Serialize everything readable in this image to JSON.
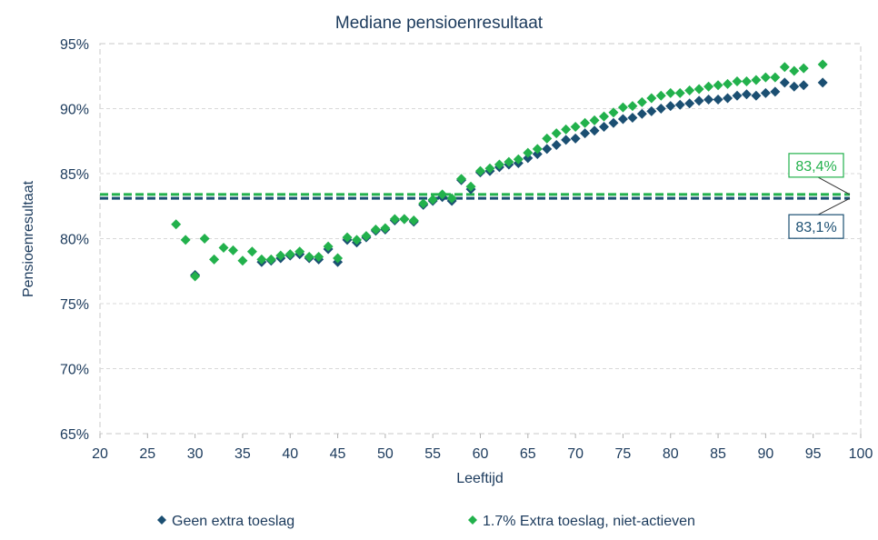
{
  "chart_data": {
    "type": "scatter",
    "title": "Mediane pensioenresultaat",
    "xlabel": "Leeftijd",
    "ylabel": "Pensioenresultaat",
    "xlim": [
      20,
      100
    ],
    "ylim": [
      65,
      95
    ],
    "x_ticks": [
      "20",
      "25",
      "30",
      "35",
      "40",
      "45",
      "50",
      "55",
      "60",
      "65",
      "70",
      "75",
      "80",
      "85",
      "90",
      "95",
      "100"
    ],
    "y_ticks": [
      "65%",
      "70%",
      "75%",
      "80%",
      "85%",
      "90%",
      "95%"
    ],
    "grid": "horizontal dashed",
    "legend_position": "bottom",
    "series": [
      {
        "name": "Geen extra toeslag",
        "color": "#1b4f72",
        "marker": "diamond",
        "points": [
          [
            30,
            77.2
          ],
          [
            37,
            78.2
          ],
          [
            38,
            78.3
          ],
          [
            39,
            78.5
          ],
          [
            40,
            78.7
          ],
          [
            41,
            78.8
          ],
          [
            42,
            78.5
          ],
          [
            43,
            78.4
          ],
          [
            44,
            79.2
          ],
          [
            45,
            78.2
          ],
          [
            46,
            79.9
          ],
          [
            47,
            79.7
          ],
          [
            48,
            80.1
          ],
          [
            49,
            80.6
          ],
          [
            50,
            80.7
          ],
          [
            51,
            81.4
          ],
          [
            52,
            81.5
          ],
          [
            53,
            81.3
          ],
          [
            54,
            82.6
          ],
          [
            55,
            82.9
          ],
          [
            56,
            83.2
          ],
          [
            57,
            82.9
          ],
          [
            58,
            84.5
          ],
          [
            59,
            83.8
          ],
          [
            60,
            85.1
          ],
          [
            61,
            85.2
          ],
          [
            62,
            85.5
          ],
          [
            63,
            85.7
          ],
          [
            64,
            85.8
          ],
          [
            65,
            86.2
          ],
          [
            66,
            86.5
          ],
          [
            67,
            86.9
          ],
          [
            68,
            87.2
          ],
          [
            69,
            87.6
          ],
          [
            70,
            87.7
          ],
          [
            71,
            88.1
          ],
          [
            72,
            88.3
          ],
          [
            73,
            88.6
          ],
          [
            74,
            88.9
          ],
          [
            75,
            89.2
          ],
          [
            76,
            89.3
          ],
          [
            77,
            89.6
          ],
          [
            78,
            89.8
          ],
          [
            79,
            90.0
          ],
          [
            80,
            90.2
          ],
          [
            81,
            90.3
          ],
          [
            82,
            90.4
          ],
          [
            83,
            90.6
          ],
          [
            84,
            90.7
          ],
          [
            85,
            90.7
          ],
          [
            86,
            90.8
          ],
          [
            87,
            91.0
          ],
          [
            88,
            91.1
          ],
          [
            89,
            91.0
          ],
          [
            90,
            91.2
          ],
          [
            91,
            91.3
          ],
          [
            92,
            92.0
          ],
          [
            93,
            91.7
          ],
          [
            94,
            91.8
          ],
          [
            96,
            92.0
          ]
        ]
      },
      {
        "name": "1.7% Extra toeslag, niet-actieven",
        "color": "#22b14c",
        "marker": "diamond",
        "points": [
          [
            28,
            81.1
          ],
          [
            29,
            79.9
          ],
          [
            30,
            77.1
          ],
          [
            31,
            80.0
          ],
          [
            32,
            78.4
          ],
          [
            33,
            79.3
          ],
          [
            34,
            79.1
          ],
          [
            35,
            78.3
          ],
          [
            36,
            79.0
          ],
          [
            37,
            78.4
          ],
          [
            38,
            78.4
          ],
          [
            39,
            78.7
          ],
          [
            40,
            78.8
          ],
          [
            41,
            79.0
          ],
          [
            42,
            78.6
          ],
          [
            43,
            78.6
          ],
          [
            44,
            79.4
          ],
          [
            45,
            78.5
          ],
          [
            46,
            80.1
          ],
          [
            47,
            79.9
          ],
          [
            48,
            80.2
          ],
          [
            49,
            80.7
          ],
          [
            50,
            80.8
          ],
          [
            51,
            81.5
          ],
          [
            52,
            81.5
          ],
          [
            53,
            81.4
          ],
          [
            54,
            82.7
          ],
          [
            55,
            83.0
          ],
          [
            56,
            83.4
          ],
          [
            57,
            83.1
          ],
          [
            58,
            84.6
          ],
          [
            59,
            84.0
          ],
          [
            60,
            85.2
          ],
          [
            61,
            85.4
          ],
          [
            62,
            85.7
          ],
          [
            63,
            85.9
          ],
          [
            64,
            86.1
          ],
          [
            65,
            86.6
          ],
          [
            66,
            86.9
          ],
          [
            67,
            87.7
          ],
          [
            68,
            88.1
          ],
          [
            69,
            88.4
          ],
          [
            70,
            88.6
          ],
          [
            71,
            88.9
          ],
          [
            72,
            89.1
          ],
          [
            73,
            89.4
          ],
          [
            74,
            89.7
          ],
          [
            75,
            90.1
          ],
          [
            76,
            90.2
          ],
          [
            77,
            90.5
          ],
          [
            78,
            90.8
          ],
          [
            79,
            91.0
          ],
          [
            80,
            91.2
          ],
          [
            81,
            91.2
          ],
          [
            82,
            91.4
          ],
          [
            83,
            91.5
          ],
          [
            84,
            91.7
          ],
          [
            85,
            91.8
          ],
          [
            86,
            91.9
          ],
          [
            87,
            92.1
          ],
          [
            88,
            92.1
          ],
          [
            89,
            92.2
          ],
          [
            90,
            92.4
          ],
          [
            91,
            92.4
          ],
          [
            92,
            93.2
          ],
          [
            93,
            92.9
          ],
          [
            94,
            93.1
          ],
          [
            96,
            93.4
          ]
        ]
      }
    ],
    "reference_lines": [
      {
        "value": 83.4,
        "label": "83,4%",
        "color": "#22b14c"
      },
      {
        "value": 83.1,
        "label": "83,1%",
        "color": "#1b4f72"
      }
    ]
  }
}
